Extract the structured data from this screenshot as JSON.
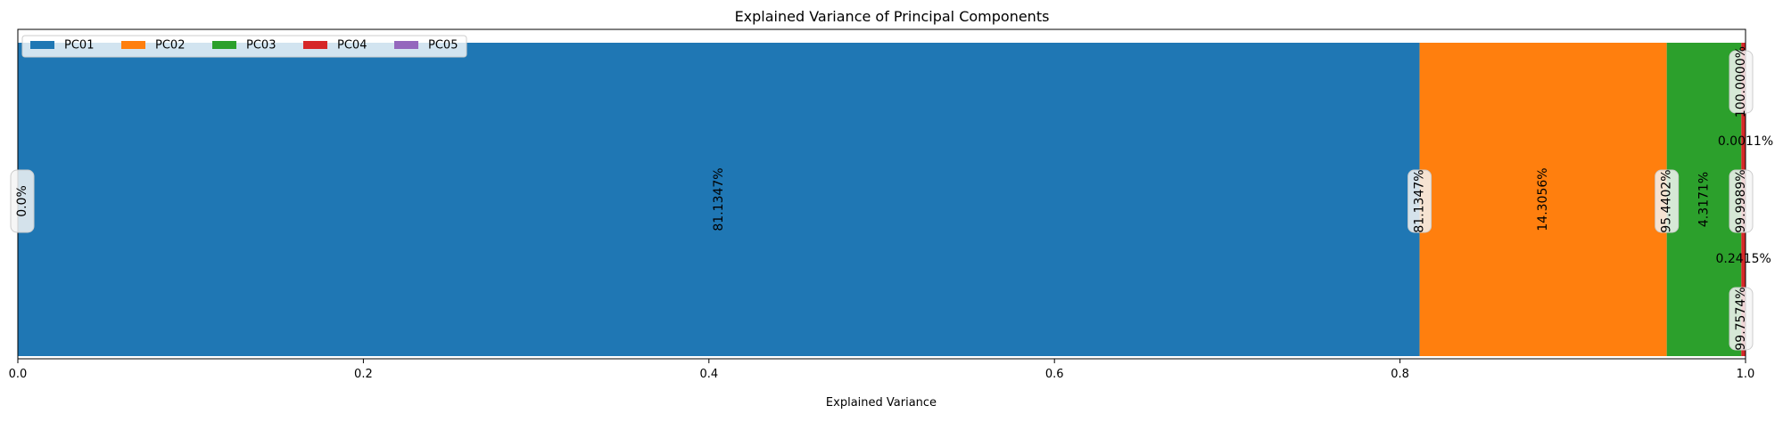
{
  "chart_data": {
    "type": "bar",
    "orientation": "horizontal-stacked",
    "title": "Explained Variance of Principal Components",
    "xlabel": "Explained Variance",
    "ylabel": "",
    "xlim": [
      0,
      1
    ],
    "xticks": [
      0.0,
      0.2,
      0.4,
      0.6,
      0.8,
      1.0
    ],
    "xtick_labels": [
      "0.0",
      "0.2",
      "0.4",
      "0.6",
      "0.8",
      "1.0"
    ],
    "grid": false,
    "legend_position": "top-left",
    "series": [
      {
        "name": "PC01",
        "value": 0.811347,
        "label": "81.1347%",
        "color": "#1f77b4"
      },
      {
        "name": "PC02",
        "value": 0.143056,
        "label": "14.3056%",
        "color": "#ff7f0e"
      },
      {
        "name": "PC03",
        "value": 0.043171,
        "label": "4.3171%",
        "color": "#2ca02c"
      },
      {
        "name": "PC04",
        "value": 0.002415,
        "label": "0.2415%",
        "color": "#d62728"
      },
      {
        "name": "PC05",
        "value": 1.1e-05,
        "label": "0.0011%",
        "color": "#9467bd"
      }
    ],
    "cumulative_labels": [
      {
        "value": 0.0,
        "label": "0.0%"
      },
      {
        "value": 0.811347,
        "label": "81.1347%"
      },
      {
        "value": 0.954402,
        "label": "95.4402%"
      },
      {
        "value": 0.997574,
        "label": "99.7574%"
      },
      {
        "value": 0.999989,
        "label": "99.9989%"
      },
      {
        "value": 1.0,
        "label": "100.0000%"
      }
    ]
  }
}
